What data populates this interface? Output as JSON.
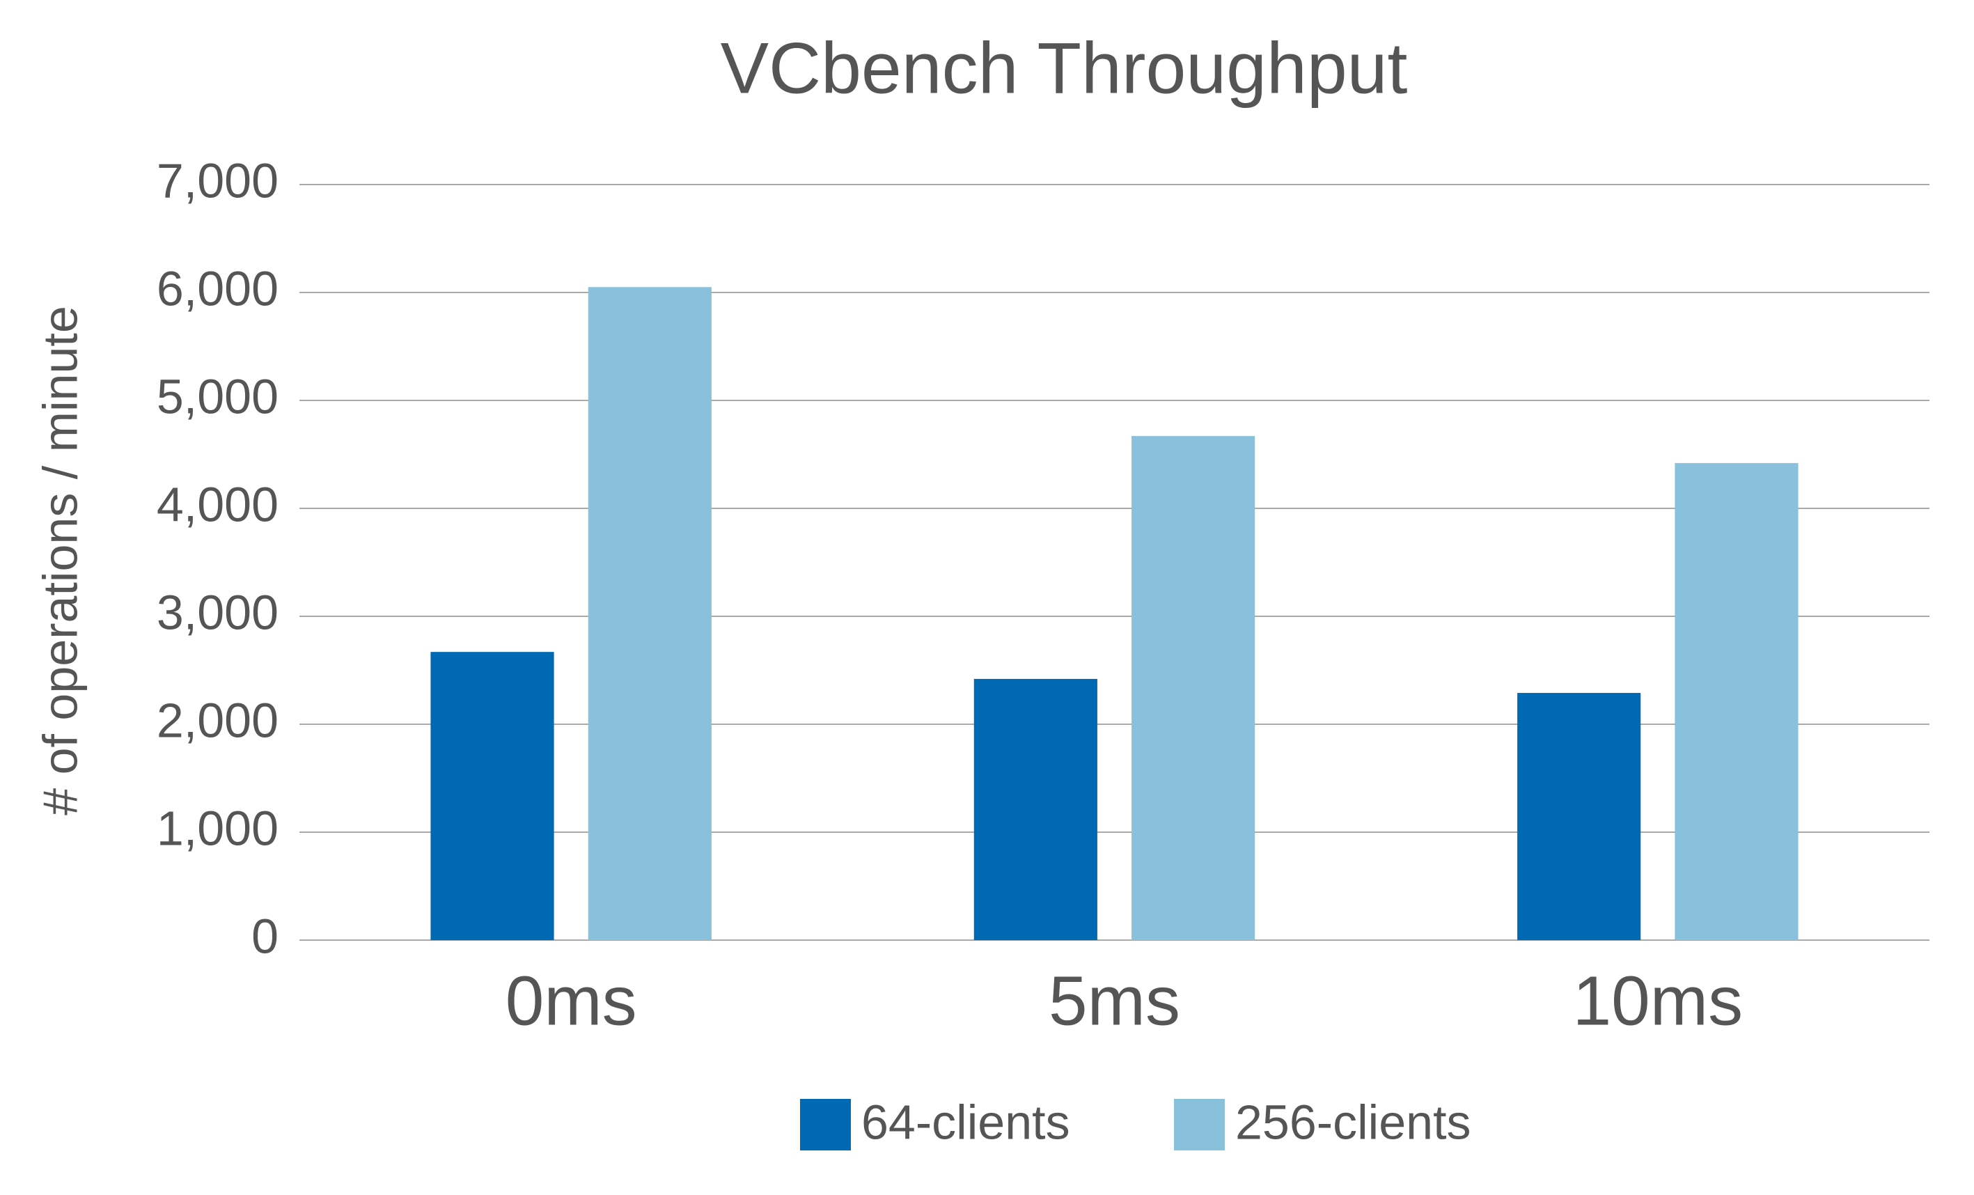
{
  "chart_data": {
    "type": "bar",
    "title": "VCbench Throughput",
    "y_label": "# of operations / minute",
    "categories": [
      "0ms",
      "5ms",
      "10ms"
    ],
    "series": [
      {
        "name": "64-clients",
        "color": "#0069b4",
        "values": [
          2670,
          2420,
          2290
        ]
      },
      {
        "name": "256-clients",
        "color": "#89c0dc",
        "values": [
          6050,
          4670,
          4420
        ]
      }
    ],
    "ylim": [
      0,
      7000
    ],
    "yticks": [
      0,
      {
        "value": 1000,
        "label": "1,000"
      },
      {
        "value": 2000,
        "label": "2,000"
      },
      {
        "value": 3000,
        "label": "3,000"
      },
      {
        "value": 4000,
        "label": "4,000"
      },
      {
        "value": 5000,
        "label": "5,000"
      },
      {
        "value": 6000,
        "label": "6,000"
      },
      {
        "value": 7000,
        "label": "7,000"
      }
    ],
    "grid": true,
    "legend": "bottom"
  }
}
